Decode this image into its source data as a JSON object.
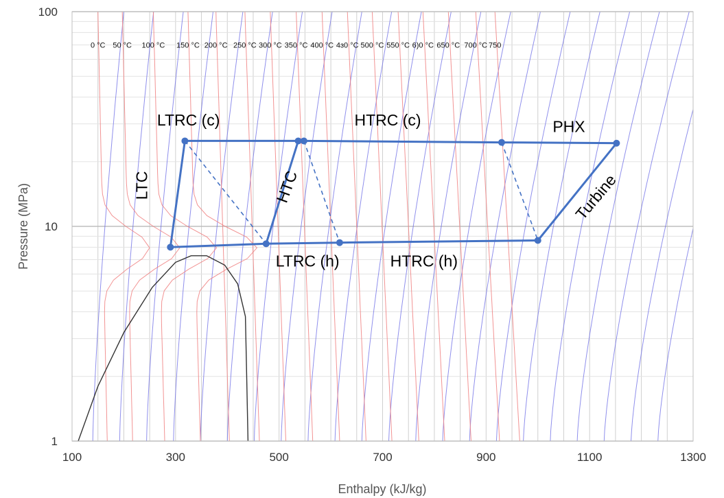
{
  "chart_data": {
    "type": "line",
    "title": "",
    "xlabel": "Enthalpy (kJ/kg)",
    "ylabel": "Pressure (MPa)",
    "xlim": [
      100,
      1300
    ],
    "ylim": [
      1,
      100
    ],
    "yscale": "log",
    "grid": true,
    "x_tick_labels": [
      "100",
      "300",
      "500",
      "700",
      "900",
      "1100",
      "1300"
    ],
    "y_tick_labels": [
      {
        "value": 1,
        "label": "1"
      },
      {
        "value": 10,
        "label": "10"
      },
      {
        "value": 100,
        "label": "100"
      }
    ],
    "isotherm_labels": [
      {
        "label": "0 °C",
        "h": 150
      },
      {
        "label": "50 °C",
        "h": 197
      },
      {
        "label": "100 °C",
        "h": 257
      },
      {
        "label": "150 °C",
        "h": 324
      },
      {
        "label": "200 °C",
        "h": 378
      },
      {
        "label": "250 °C",
        "h": 434
      },
      {
        "label": "300 °C",
        "h": 483
      },
      {
        "label": "350 °C",
        "h": 533
      },
      {
        "label": "400 °C",
        "h": 583
      },
      {
        "label": "4ɜ0 °C",
        "h": 632
      },
      {
        "label": "500 °C",
        "h": 680
      },
      {
        "label": "550 °C",
        "h": 730
      },
      {
        "label": "6)0 °C",
        "h": 778
      },
      {
        "label": "650 °C",
        "h": 827
      },
      {
        "label": "700 °C",
        "h": 880
      },
      {
        "label": "750",
        "h": 917
      }
    ],
    "isotherm_label_pressure": 70,
    "saturation_dome": [
      {
        "h": 112,
        "p": 1.0
      },
      {
        "h": 150,
        "p": 1.8
      },
      {
        "h": 200,
        "p": 3.2
      },
      {
        "h": 255,
        "p": 5.2
      },
      {
        "h": 300,
        "p": 6.8
      },
      {
        "h": 330,
        "p": 7.3
      },
      {
        "h": 360,
        "p": 7.3
      },
      {
        "h": 395,
        "p": 6.6
      },
      {
        "h": 420,
        "p": 5.4
      },
      {
        "h": 435,
        "p": 3.8
      },
      {
        "h": 437,
        "p": 2.2
      },
      {
        "h": 440,
        "p": 1.0
      }
    ],
    "cycle_states": [
      {
        "h": 318,
        "p": 25.0
      },
      {
        "h": 537,
        "p": 25.0
      },
      {
        "h": 548,
        "p": 25.0
      },
      {
        "h": 930,
        "p": 24.6
      },
      {
        "h": 1152,
        "p": 24.4
      },
      {
        "h": 1000,
        "p": 8.6
      },
      {
        "h": 617,
        "p": 8.4
      },
      {
        "h": 475,
        "p": 8.3
      },
      {
        "h": 290,
        "p": 8.0
      }
    ],
    "series": [
      {
        "label": "LTC",
        "points": [
          {
            "h": 290,
            "p": 8.0
          },
          {
            "h": 318,
            "p": 25.0
          }
        ],
        "style": "solid"
      },
      {
        "label": "LTRC (c)",
        "points": [
          {
            "h": 318,
            "p": 25.0
          },
          {
            "h": 537,
            "p": 25.0
          }
        ],
        "style": "solid"
      },
      {
        "label": "HTRC (c)",
        "points": [
          {
            "h": 548,
            "p": 25.0
          },
          {
            "h": 930,
            "p": 24.6
          }
        ],
        "style": "solid"
      },
      {
        "label": "PHX",
        "points": [
          {
            "h": 930,
            "p": 24.6
          },
          {
            "h": 1152,
            "p": 24.4
          }
        ],
        "style": "solid"
      },
      {
        "label": "Turbine",
        "points": [
          {
            "h": 1152,
            "p": 24.4
          },
          {
            "h": 1000,
            "p": 8.6
          }
        ],
        "style": "solid"
      },
      {
        "label": "HTRC (h)",
        "points": [
          {
            "h": 1000,
            "p": 8.6
          },
          {
            "h": 617,
            "p": 8.4
          }
        ],
        "style": "solid"
      },
      {
        "label": "LTRC (h)",
        "points": [
          {
            "h": 617,
            "p": 8.4
          },
          {
            "h": 475,
            "p": 8.3
          },
          {
            "h": 290,
            "p": 8.0
          }
        ],
        "style": "solid"
      },
      {
        "label": "HTC",
        "points": [
          {
            "h": 475,
            "p": 8.3
          },
          {
            "h": 537,
            "p": 25.0
          }
        ],
        "style": "solid"
      },
      {
        "points": [
          {
            "h": 318,
            "p": 25.0
          },
          {
            "h": 475,
            "p": 8.3
          }
        ],
        "style": "dashed"
      },
      {
        "points": [
          {
            "h": 548,
            "p": 25.0
          },
          {
            "h": 617,
            "p": 8.4
          }
        ],
        "style": "dashed"
      },
      {
        "points": [
          {
            "h": 930,
            "p": 24.6
          },
          {
            "h": 1000,
            "p": 8.6
          }
        ],
        "style": "dashed"
      }
    ],
    "process_labels": [
      {
        "text": "LTRC (c)",
        "h": 325,
        "p": 29.5,
        "rotate": 0
      },
      {
        "text": "HTRC (c)",
        "h": 710,
        "p": 29.5,
        "rotate": 0
      },
      {
        "text": "PHX",
        "h": 1060,
        "p": 27.5,
        "rotate": 0
      },
      {
        "text": "LTC",
        "h": 245,
        "p": 15.5,
        "rotate": -90
      },
      {
        "text": "HTC",
        "h": 525,
        "p": 15.0,
        "rotate": -70
      },
      {
        "text": "Turbine",
        "h": 1120,
        "p": 13.2,
        "rotate": -50
      },
      {
        "text": "LTRC (h)",
        "h": 555,
        "p": 6.5,
        "rotate": 0
      },
      {
        "text": "HTRC (h)",
        "h": 780,
        "p": 6.5,
        "rotate": 0
      }
    ],
    "colors": {
      "cycle": "#4472c4",
      "isotherm": "#f08080",
      "isentrope": "#6a6ae6",
      "saturation": "#333333",
      "grid": "#cfcfcf"
    }
  }
}
